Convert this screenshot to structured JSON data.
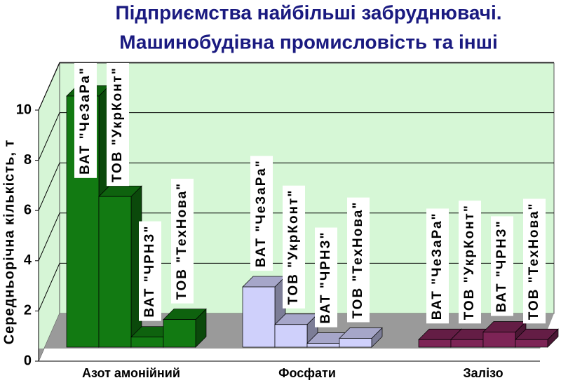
{
  "chart_data": {
    "type": "bar",
    "title": "Підприємства найбільші забруднювачі.",
    "subtitle": "Машинобудівна промисловість та інші",
    "y_label": "Середньорічна кількість, т",
    "categories": [
      "Азот амонійний",
      "Фосфати",
      "Залізо"
    ],
    "category_colors": [
      "#127a12",
      "#cfd0fb",
      "#7d2456"
    ],
    "series": [
      {
        "name": "ВАТ \"ЧеЗаРа\"",
        "values": [
          10,
          2.4,
          0.3
        ]
      },
      {
        "name": "ТОВ \"УкрКонт\"",
        "values": [
          6,
          0.9,
          0.3
        ]
      },
      {
        "name": "ВАТ \"ЧРНЗ\"",
        "values": [
          0.4,
          0.15,
          0.6
        ]
      },
      {
        "name": "ТОВ \"ТехНова\"",
        "values": [
          1.1,
          0.35,
          0.3
        ]
      }
    ],
    "ylim": [
      0,
      10
    ],
    "yticks": [
      0,
      2,
      4,
      6,
      8,
      10
    ],
    "grid": true
  }
}
